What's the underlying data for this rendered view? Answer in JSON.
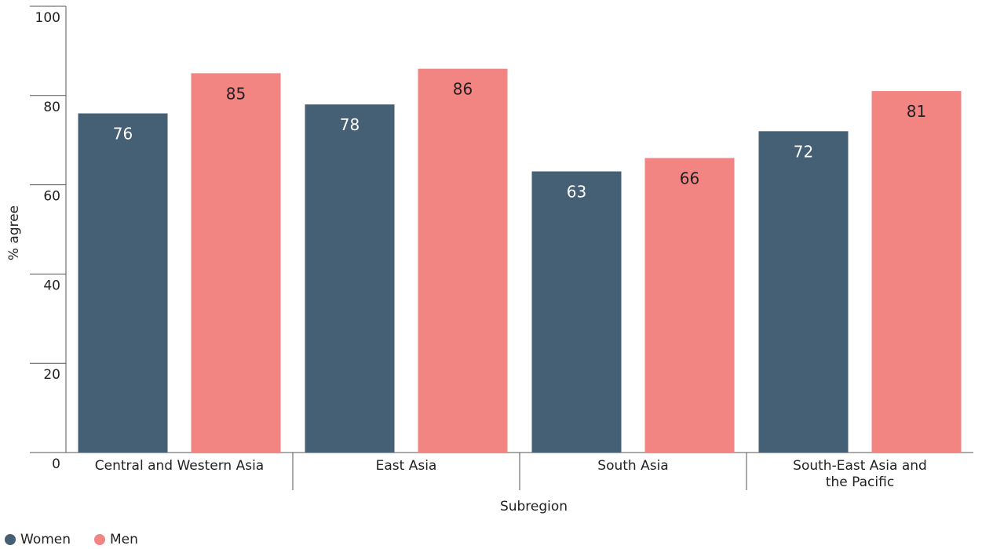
{
  "chart_data": {
    "type": "bar",
    "categories": [
      [
        "Central and Western Asia"
      ],
      [
        "East Asia"
      ],
      [
        "South Asia"
      ],
      [
        "South-East Asia and",
        "the Pacific"
      ]
    ],
    "series": [
      {
        "name": "Women",
        "color": "#455f75",
        "values": [
          76,
          78,
          63,
          72
        ]
      },
      {
        "name": "Men",
        "color": "#f28482",
        "values": [
          85,
          86,
          66,
          81
        ]
      }
    ],
    "xlabel": "Subregion",
    "ylabel": "% agree",
    "ylim": [
      0,
      100
    ],
    "yticks": [
      "0",
      "20",
      "40",
      "60",
      "80",
      "100"
    ],
    "grid": false,
    "legend_position": "bottom-left"
  }
}
